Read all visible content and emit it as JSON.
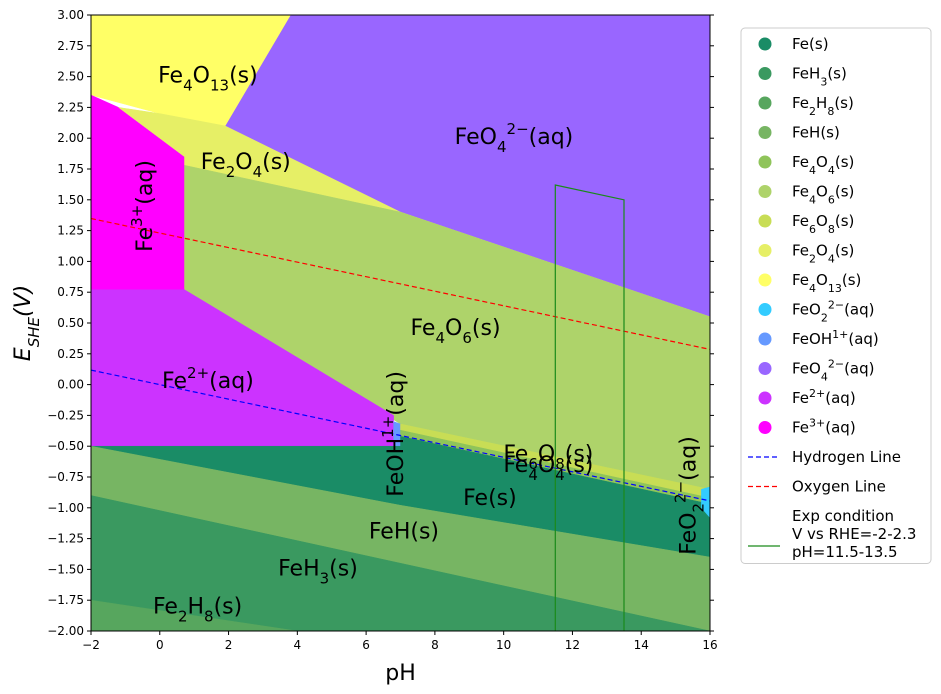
{
  "chart_data": {
    "type": "area",
    "title": "",
    "xlabel": "pH",
    "ylabel": "E",
    "ylabel_sub": "SHE",
    "ylabel_tail": "(V)",
    "xlim": [
      -2,
      16
    ],
    "ylim": [
      -2.0,
      3.0
    ],
    "x_ticks": [
      "-2",
      "0",
      "2",
      "4",
      "6",
      "8",
      "10",
      "12",
      "14",
      "16"
    ],
    "y_ticks": [
      "-2.00",
      "-1.75",
      "-1.50",
      "-1.25",
      "-1.00",
      "-0.75",
      "-0.50",
      "-0.25",
      "0.00",
      "0.25",
      "0.50",
      "0.75",
      "1.00",
      "1.25",
      "1.50",
      "1.75",
      "2.00",
      "2.25",
      "2.50",
      "2.75",
      "3.00"
    ],
    "regions": [
      {
        "key": "FeO4_aq",
        "color": "#9966ff",
        "poly": [
          [
            -2,
            3
          ],
          [
            16,
            3
          ],
          [
            16,
            0.55
          ],
          [
            7,
            1.4
          ],
          [
            1.9,
            2.1
          ],
          [
            3.8,
            3
          ]
        ]
      },
      {
        "key": "Fe4O13",
        "color": "#ffff66",
        "poly": [
          [
            -2,
            3
          ],
          [
            3.8,
            3
          ],
          [
            1.9,
            2.1
          ],
          [
            0,
            2.2
          ],
          [
            -2,
            2.35
          ]
        ]
      },
      {
        "key": "Fe3_aq",
        "color": "#ff00ff",
        "poly": [
          [
            -2,
            2.35
          ],
          [
            -1.2,
            2.25
          ],
          [
            0.72,
            1.85
          ],
          [
            0.72,
            0.77
          ],
          [
            -2,
            0.77
          ]
        ]
      },
      {
        "key": "Fe2O4",
        "color": "#e6ef66",
        "poly": [
          [
            -1.2,
            2.25
          ],
          [
            0,
            2.2
          ],
          [
            1.9,
            2.1
          ],
          [
            7,
            1.4
          ],
          [
            16,
            0.55
          ],
          [
            16,
            -0.88
          ],
          [
            7,
            -0.29
          ],
          [
            0.72,
            1.78
          ],
          [
            0.72,
            1.85
          ]
        ]
      },
      {
        "key": "Fe4O6",
        "color": "#aed36a",
        "poly": [
          [
            0.72,
            1.78
          ],
          [
            7,
            1.4
          ],
          [
            16,
            0.55
          ],
          [
            16,
            -0.85
          ],
          [
            7,
            -0.32
          ],
          [
            0.72,
            0.77
          ]
        ]
      },
      {
        "key": "Fe2_aq",
        "color": "#cc33ff",
        "poly": [
          [
            -2,
            0.77
          ],
          [
            0.72,
            0.77
          ],
          [
            6.8,
            -0.25
          ],
          [
            6.8,
            -0.5
          ],
          [
            -2,
            -0.5
          ]
        ]
      },
      {
        "key": "FeOH_aq",
        "color": "#6699ff",
        "poly": [
          [
            6.8,
            -0.3
          ],
          [
            7,
            -0.32
          ],
          [
            7,
            -0.5
          ],
          [
            6.8,
            -0.5
          ]
        ]
      },
      {
        "key": "Fe6O8",
        "color": "#c8dd55",
        "poly": [
          [
            7,
            -0.32
          ],
          [
            16,
            -0.85
          ],
          [
            16,
            -0.92
          ],
          [
            7,
            -0.37
          ]
        ]
      },
      {
        "key": "Fe4O4",
        "color": "#8fc45a",
        "poly": [
          [
            7,
            -0.37
          ],
          [
            16,
            -0.92
          ],
          [
            16,
            -0.97
          ],
          [
            7,
            -0.42
          ]
        ]
      },
      {
        "key": "Fe_s",
        "color": "#1a8c66",
        "poly": [
          [
            -2,
            -0.5
          ],
          [
            7,
            -0.5
          ],
          [
            7,
            -0.42
          ],
          [
            16,
            -0.97
          ],
          [
            16,
            -1.4
          ],
          [
            7,
            -0.98
          ],
          [
            -2,
            -0.5
          ]
        ]
      },
      {
        "key": "FeH",
        "color": "#77b563",
        "poly": [
          [
            -2,
            -0.5
          ],
          [
            7,
            -0.98
          ],
          [
            16,
            -1.4
          ],
          [
            16,
            -2
          ],
          [
            -2,
            -2
          ]
        ]
      },
      {
        "key": "FeH3",
        "color": "#3a9960",
        "poly": [
          [
            -2,
            -0.9
          ],
          [
            16,
            -2
          ],
          [
            -2,
            -2
          ]
        ]
      },
      {
        "key": "Fe2H8",
        "color": "#57a65e",
        "poly": [
          [
            -2,
            -1.75
          ],
          [
            4,
            -2
          ],
          [
            -2,
            -2
          ]
        ]
      },
      {
        "key": "FeO2_aq",
        "color": "#33ccff",
        "poly": [
          [
            15.75,
            -0.85
          ],
          [
            16,
            -0.83
          ],
          [
            16,
            -1.08
          ],
          [
            15.75,
            -1.0
          ]
        ]
      }
    ],
    "region_labels": [
      {
        "key": "Fe4O13",
        "main": "Fe",
        "sub1": "4",
        "mid": "O",
        "sub2": "13",
        "tail": "(s)",
        "x": 1.4,
        "y": 2.5,
        "rot": 0
      },
      {
        "key": "FeO4_aq",
        "main": "FeO",
        "sub1": "4",
        "sup": "2−",
        "tail": "(aq)",
        "x": 10.3,
        "y": 2.0,
        "rot": 0
      },
      {
        "key": "Fe2O4",
        "main": "Fe",
        "sub1": "2",
        "mid": "O",
        "sub2": "4",
        "tail": "(s)",
        "x": 2.5,
        "y": 1.8,
        "rot": 0
      },
      {
        "key": "Fe3_aq",
        "main": "Fe",
        "sup": "3+",
        "tail": "(aq)",
        "x": -0.4,
        "y": 1.45,
        "rot": -90
      },
      {
        "key": "Fe4O6",
        "main": "Fe",
        "sub1": "4",
        "mid": "O",
        "sub2": "6",
        "tail": "(s)",
        "x": 8.6,
        "y": 0.45,
        "rot": 0
      },
      {
        "key": "Fe2_aq",
        "main": "Fe",
        "sup": "2+",
        "tail": "(aq)",
        "x": 1.4,
        "y": 0.02,
        "rot": 0
      },
      {
        "key": "FeOH_aq",
        "main": "FeOH",
        "sup": "1+",
        "tail": "(aq)",
        "x": 6.9,
        "y": -0.4,
        "rot": -90
      },
      {
        "key": "Fe6O8",
        "main": "Fe",
        "sub1": "6",
        "mid": "O",
        "sub2": "8",
        "tail": "(s)",
        "x": 11.3,
        "y": -0.57,
        "rot": 0
      },
      {
        "key": "Fe4O4",
        "main": "Fe",
        "sub1": "4",
        "mid": "O",
        "sub2": "4",
        "tail": "(s)",
        "x": 11.3,
        "y": -0.66,
        "rot": 0
      },
      {
        "key": "Fe_s",
        "main": "Fe",
        "tail": "(s)",
        "x": 9.6,
        "y": -0.93,
        "rot": 0
      },
      {
        "key": "FeH",
        "main": "FeH",
        "tail": "(s)",
        "x": 7.1,
        "y": -1.2,
        "rot": 0
      },
      {
        "key": "FeH3",
        "main": "FeH",
        "sub1": "3",
        "tail": "(s)",
        "x": 4.6,
        "y": -1.5,
        "rot": 0
      },
      {
        "key": "Fe2H8",
        "main": "Fe",
        "sub1": "2",
        "mid": "H",
        "sub2": "8",
        "tail": "(s)",
        "x": 1.1,
        "y": -1.81,
        "rot": 0
      },
      {
        "key": "FeO2_aq",
        "main": "FeO",
        "sub1": "2",
        "sup": "2−",
        "tail": "(aq)",
        "x": 15.4,
        "y": -0.9,
        "rot": -90
      }
    ],
    "lines": [
      {
        "name": "Hydrogen Line",
        "color": "#0000ff",
        "dash": "5,3",
        "points": [
          [
            -2,
            0.118
          ],
          [
            16,
            -0.944
          ]
        ]
      },
      {
        "name": "Oxygen Line",
        "color": "#ff0000",
        "dash": "5,3",
        "points": [
          [
            -2,
            1.348
          ],
          [
            16,
            0.286
          ]
        ]
      },
      {
        "name": "Exp condition",
        "color": "#1a8a1a",
        "dash": "",
        "points": [
          [
            11.5,
            -2
          ],
          [
            11.5,
            1.62
          ],
          [
            13.5,
            1.5
          ],
          [
            13.5,
            -2
          ]
        ]
      }
    ],
    "legend": {
      "placement": "outside-right",
      "entries": [
        {
          "kind": "dot",
          "color": "#1a8c66",
          "main": "Fe",
          "tail": "(s)"
        },
        {
          "kind": "dot",
          "color": "#3a9960",
          "main": "FeH",
          "sub1": "3",
          "tail": "(s)"
        },
        {
          "kind": "dot",
          "color": "#57a65e",
          "main": "Fe",
          "sub1": "2",
          "mid": "H",
          "sub2": "8",
          "tail": "(s)"
        },
        {
          "kind": "dot",
          "color": "#77b563",
          "main": "FeH",
          "tail": "(s)"
        },
        {
          "kind": "dot",
          "color": "#8fc45a",
          "main": "Fe",
          "sub1": "4",
          "mid": "O",
          "sub2": "4",
          "tail": "(s)"
        },
        {
          "kind": "dot",
          "color": "#aed36a",
          "main": "Fe",
          "sub1": "4",
          "mid": "O",
          "sub2": "6",
          "tail": "(s)"
        },
        {
          "kind": "dot",
          "color": "#c8dd55",
          "main": "Fe",
          "sub1": "6",
          "mid": "O",
          "sub2": "8",
          "tail": "(s)"
        },
        {
          "kind": "dot",
          "color": "#e6ef66",
          "main": "Fe",
          "sub1": "2",
          "mid": "O",
          "sub2": "4",
          "tail": "(s)"
        },
        {
          "kind": "dot",
          "color": "#ffff66",
          "main": "Fe",
          "sub1": "4",
          "mid": "O",
          "sub2": "13",
          "tail": "(s)"
        },
        {
          "kind": "dot",
          "color": "#33ccff",
          "main": "FeO",
          "sub1": "2",
          "sup": "2−",
          "tail": "(aq)"
        },
        {
          "kind": "dot",
          "color": "#6699ff",
          "main": "FeOH",
          "sup": "1+",
          "tail": "(aq)"
        },
        {
          "kind": "dot",
          "color": "#9966ff",
          "main": "FeO",
          "sub1": "4",
          "sup": "2−",
          "tail": "(aq)"
        },
        {
          "kind": "dot",
          "color": "#cc33ff",
          "main": "Fe",
          "sup": "2+",
          "tail": "(aq)"
        },
        {
          "kind": "dot",
          "color": "#ff00ff",
          "main": "Fe",
          "sup": "3+",
          "tail": "(aq)"
        },
        {
          "kind": "line",
          "color": "#0000ff",
          "dash": "5,3",
          "main": "Hydrogen Line"
        },
        {
          "kind": "line",
          "color": "#ff0000",
          "dash": "5,3",
          "main": "Oxygen Line"
        },
        {
          "kind": "line",
          "color": "#1a8a1a",
          "dash": "",
          "main": "Exp condition",
          "lines2": [
            "V vs RHE=-2-2.3",
            "pH=11.5-13.5"
          ]
        }
      ]
    }
  }
}
